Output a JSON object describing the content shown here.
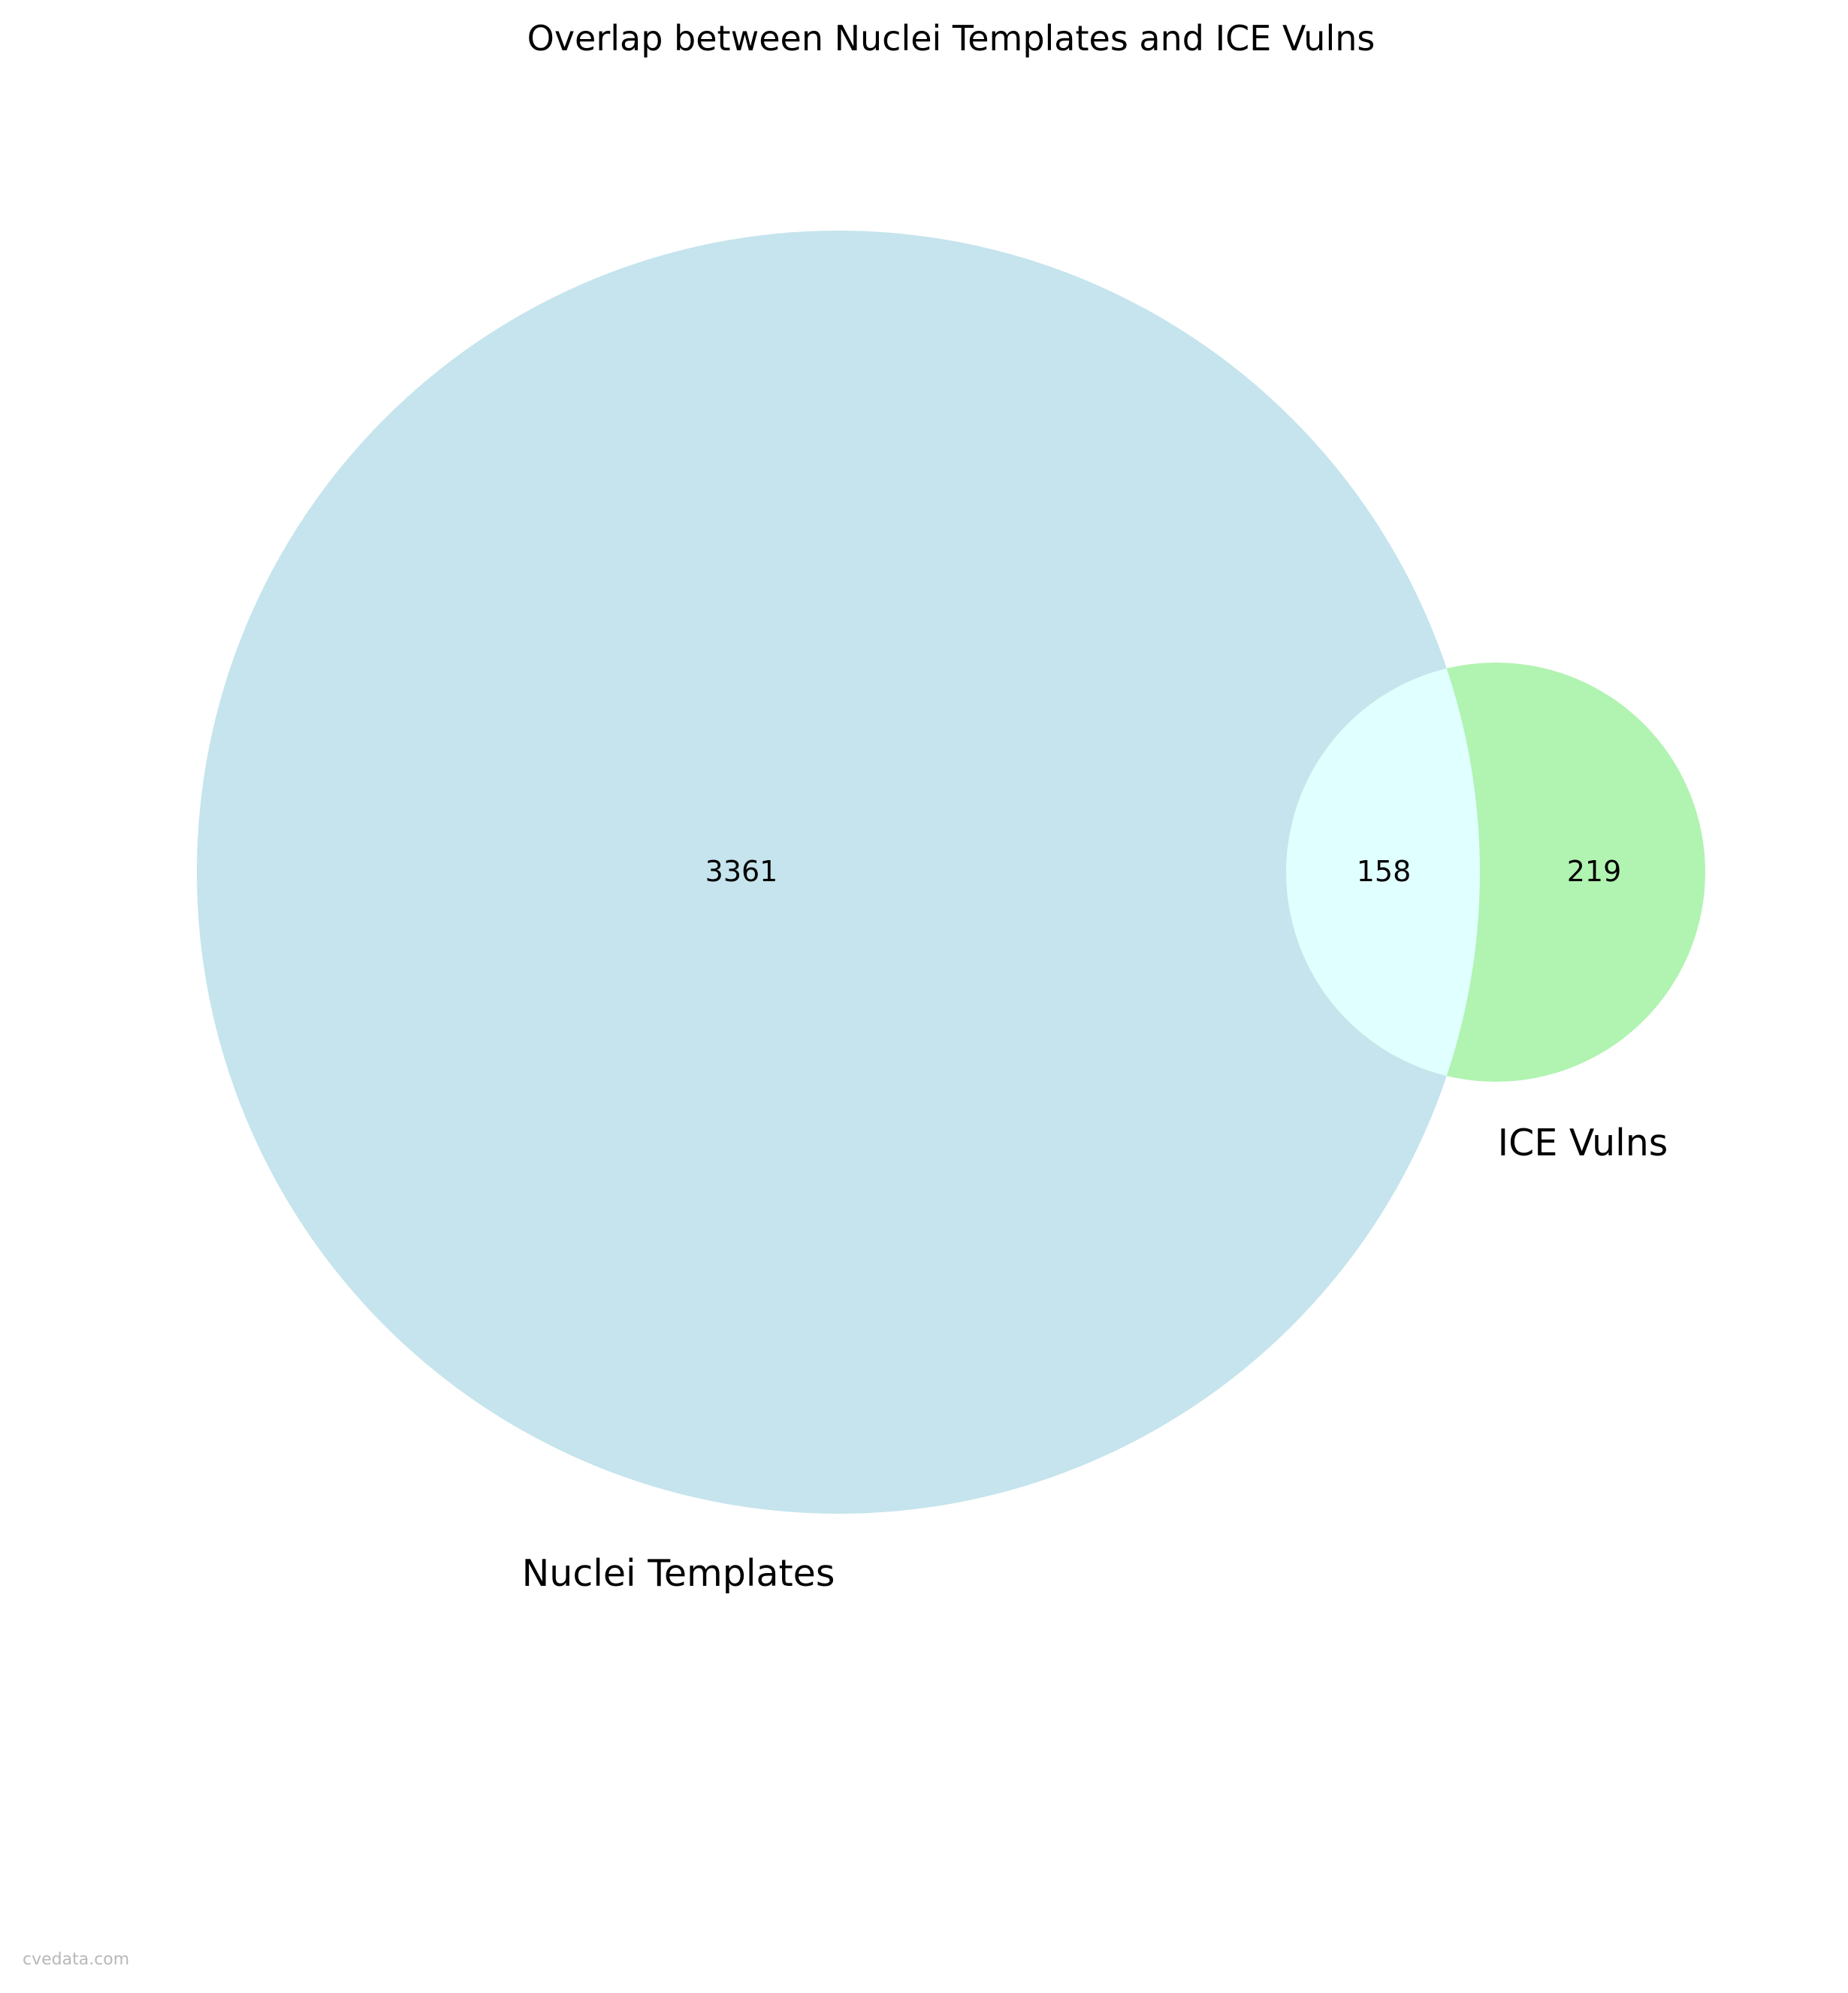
{
  "title": "Overlap between Nuclei Templates and ICE Vulns",
  "chart_data": {
    "type": "venn",
    "sets": [
      {
        "name": "Nuclei Templates",
        "only_count": "3361",
        "color": "#add8e6"
      },
      {
        "name": "ICE Vulns",
        "only_count": "219",
        "color": "#90ee90"
      }
    ],
    "intersection": {
      "count": "158",
      "color": "#e0ffff"
    },
    "opacity": 0.7
  },
  "watermark": "cvedata.com"
}
